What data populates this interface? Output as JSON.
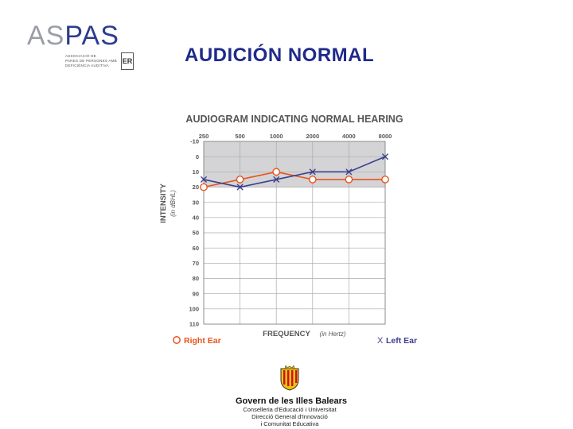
{
  "logo": {
    "prefix": "AS",
    "suffix": "PAS",
    "text": [
      "ASSOCIACIÓ DE",
      "PARES DE PERSONES AMB",
      "DEFICIÈNCIA AUDITIVA"
    ],
    "seal_label": "ER",
    "colors": {
      "prefix": "#9a9ea6",
      "suffix": "#2b3c8e"
    }
  },
  "slide": {
    "title": "AUDICIÓN NORMAL"
  },
  "chart_data": {
    "type": "line",
    "title": "AUDIOGRAM INDICATING NORMAL HEARING",
    "x": [
      250,
      500,
      1000,
      2000,
      4000,
      8000
    ],
    "x_tick_labels": [
      "250",
      "500",
      "1000",
      "2000",
      "4000",
      "8000"
    ],
    "y_ticks": [
      -10,
      0,
      10,
      20,
      30,
      40,
      50,
      60,
      70,
      80,
      90,
      100,
      110
    ],
    "ylim": [
      -10,
      110
    ],
    "y_inverted": true,
    "normal_band": [
      -10,
      20
    ],
    "ylabel": "INTENSITY",
    "ylabel_sub": "(in dBHL)",
    "xlabel": "FREQUENCY",
    "xlabel_sub": "(in Hertz)",
    "grid": true,
    "series": [
      {
        "name": "Right Ear",
        "marker": "O",
        "color": "#e8541e",
        "values": [
          20,
          15,
          10,
          15,
          15,
          15
        ]
      },
      {
        "name": "Left Ear",
        "marker": "X",
        "color": "#3b3f8e",
        "values": [
          15,
          20,
          15,
          10,
          10,
          0
        ]
      }
    ],
    "legend": {
      "left": "Right Ear",
      "right": "Left Ear",
      "left_symbol": "O",
      "right_symbol": "X"
    },
    "colors": {
      "band": "#d4d4d6",
      "grid": "#aaaaaa",
      "title": "#555555"
    }
  },
  "footer": {
    "name": "Govern de les Illes Balears",
    "lines": [
      "Conselleria d'Educació i Universitat",
      "Direcció General d'Innovació",
      "i Comunitat Educativa"
    ],
    "crest_colors": [
      "#f2c200",
      "#c8102e"
    ]
  }
}
